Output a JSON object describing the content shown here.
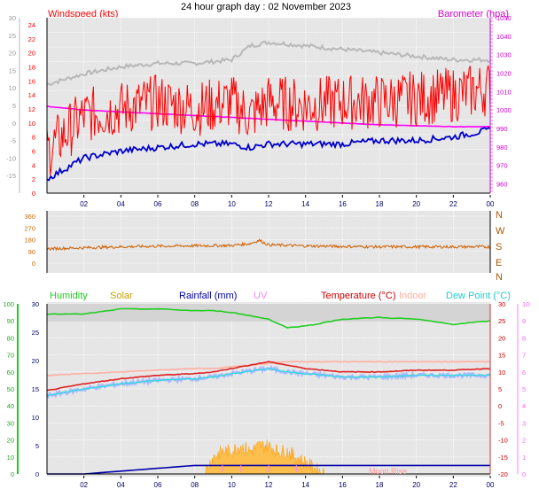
{
  "title": "24 hour graph day : 02 November 2023",
  "colors": {
    "windspeed": "#ff0000",
    "windspeed_avg": "#0000cc",
    "gust": "#b0b0b0",
    "barometer": "#ff00ff",
    "winddir": "#d06000",
    "humidity": "#22cc22",
    "solar": "#ffb733",
    "rainfall": "#0000aa",
    "uv": "#ff80ff",
    "temperature": "#dd2222",
    "indoor": "#ffb0a0",
    "dewpoint": "#22dddd",
    "plot_bg": "#e6e6e6"
  },
  "x_ticks": [
    "02",
    "04",
    "06",
    "08",
    "10",
    "12",
    "14",
    "16",
    "18",
    "20",
    "22",
    "00"
  ],
  "chart_data": [
    {
      "type": "line",
      "panel": "wind",
      "left_label": "Windspeed (kts)",
      "right_label": "Barometer (hpa)",
      "yticks_left": [
        24,
        22,
        20,
        18,
        16,
        14,
        12,
        10,
        8,
        6,
        4,
        2,
        0
      ],
      "yticks_left2": [
        30,
        25,
        20,
        15,
        10,
        5,
        0,
        -5,
        -10,
        -15
      ],
      "yticks_right": [
        1050,
        1040,
        1030,
        1020,
        1010,
        1000,
        990,
        980,
        970,
        960
      ],
      "ylim_left": [
        0,
        25
      ],
      "ylim_right": [
        955,
        1050
      ],
      "x": [
        0,
        2,
        4,
        6,
        8,
        10,
        11,
        12,
        14,
        16,
        18,
        20,
        22,
        24
      ],
      "series": [
        {
          "key": "gust",
          "values": [
            15.5,
            17,
            18,
            18.5,
            18.5,
            19,
            21,
            21.5,
            21,
            20.5,
            20,
            19.5,
            19,
            19
          ]
        },
        {
          "key": "barometer",
          "values": [
            1002,
            1000,
            999,
            998,
            997,
            996,
            995.5,
            995,
            994,
            993,
            992,
            991.5,
            991,
            991
          ]
        },
        {
          "key": "windspeed_avg",
          "values": [
            2,
            5,
            6,
            6.5,
            7,
            7,
            6.5,
            7,
            7,
            7,
            7.5,
            7.5,
            8,
            9
          ]
        },
        {
          "key": "windspeed",
          "values": [
            6,
            11,
            12,
            13,
            12,
            13,
            11,
            13,
            12.5,
            13,
            13,
            13.5,
            14,
            15
          ]
        }
      ]
    },
    {
      "type": "line",
      "panel": "winddir",
      "yticks": [
        360,
        270,
        180,
        90,
        0
      ],
      "compass": [
        "N",
        "W",
        "S",
        "E",
        "N"
      ],
      "ylim": [
        0,
        360
      ],
      "x": [
        0,
        2,
        4,
        6,
        8,
        10,
        11,
        11.5,
        12,
        14,
        16,
        18,
        20,
        22,
        24
      ],
      "values": [
        110,
        118,
        125,
        130,
        133,
        135,
        150,
        175,
        140,
        132,
        128,
        125,
        125,
        125,
        125
      ]
    },
    {
      "type": "line",
      "panel": "atmos",
      "legend": [
        "Humidity",
        "Solar",
        "Rainfall (mm)",
        "UV",
        "Temperature (°C)",
        "Indoor",
        "Dew Point (°C)"
      ],
      "yticks_humidity": [
        100,
        90,
        80,
        70,
        60,
        50,
        40,
        30,
        20,
        10,
        0
      ],
      "yticks_left": [
        30,
        25,
        20,
        15,
        10,
        5,
        0
      ],
      "yticks_right": [
        30,
        25,
        20,
        15,
        10,
        5,
        0,
        -5,
        -10,
        -15,
        -20
      ],
      "yticks_uv": [
        10,
        9,
        8,
        7,
        6,
        5,
        4,
        3,
        2,
        1,
        0
      ],
      "annotation": "Moon Rise",
      "x": [
        0,
        2,
        4,
        6,
        8,
        9,
        10,
        12,
        13,
        14,
        16,
        18,
        20,
        22,
        24
      ],
      "series": [
        {
          "key": "humidity",
          "values": [
            94,
            94,
            97,
            97,
            96,
            96,
            95,
            91,
            86,
            87,
            91,
            92,
            91,
            88,
            90
          ]
        },
        {
          "key": "temperature",
          "values": [
            4.5,
            6.5,
            8,
            9,
            9.5,
            10,
            11,
            13,
            12,
            11,
            10,
            10,
            10.5,
            10.5,
            11
          ]
        },
        {
          "key": "indoor",
          "values": [
            9,
            9.5,
            10,
            10.5,
            11,
            11,
            11.5,
            12.5,
            13,
            13,
            13,
            13,
            13,
            13,
            13
          ]
        },
        {
          "key": "dewpoint",
          "values": [
            3,
            5,
            6.5,
            7.5,
            8,
            8.5,
            9.5,
            11,
            10,
            9.5,
            8.5,
            8.5,
            9,
            9,
            9
          ]
        },
        {
          "key": "rainfall",
          "values": [
            0,
            0,
            0.5,
            1,
            1.5,
            1.5,
            1.5,
            1.5,
            1.5,
            1.5,
            1.5,
            1.5,
            1.5,
            1.5,
            1.5
          ]
        }
      ],
      "solar_x": [
        8.5,
        9,
        9.5,
        10,
        10.5,
        11,
        11.5,
        12,
        12.5,
        13,
        13.5,
        14,
        14.5,
        15
      ],
      "solar_values": [
        0,
        3,
        4,
        4,
        5,
        4,
        5,
        5,
        4,
        4,
        3,
        2,
        1,
        0
      ]
    }
  ]
}
